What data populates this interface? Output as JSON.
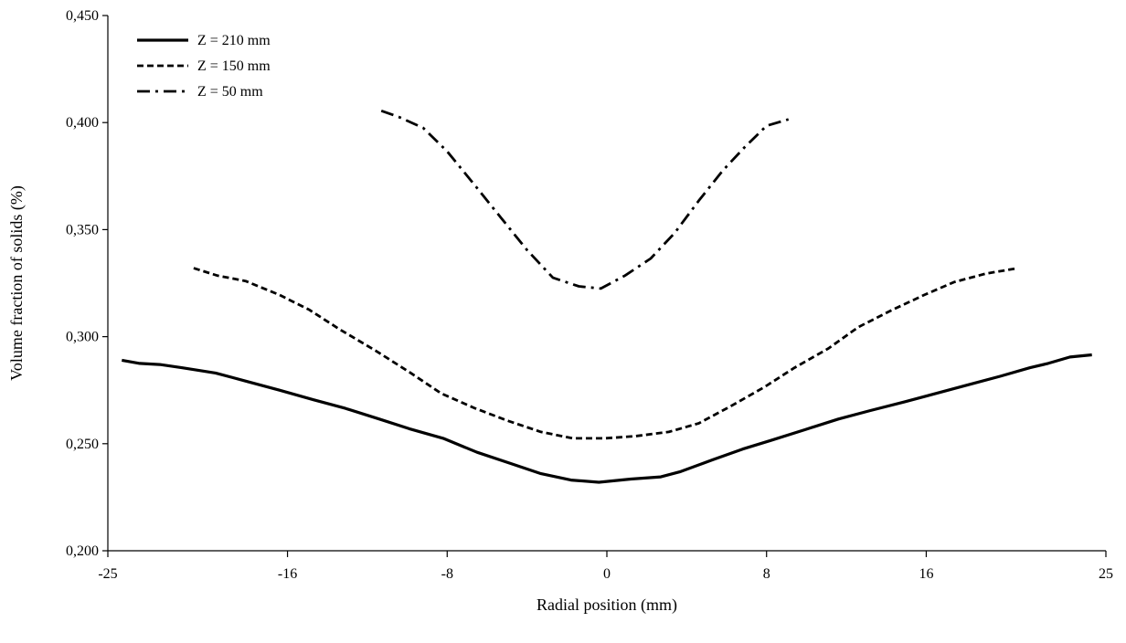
{
  "chart_data": {
    "type": "line",
    "title": "",
    "xlabel": "Radial position (mm)",
    "ylabel": "Volume fraction of solids (%)",
    "xlim": [
      -25,
      25
    ],
    "ylim": [
      0.2,
      0.45
    ],
    "x_ticks": [
      -25,
      -16,
      -8,
      0,
      8,
      16,
      25
    ],
    "x_tick_labels": [
      "-25",
      "-16",
      "-8",
      "0",
      "8",
      "16",
      "25"
    ],
    "y_ticks": [
      0.2,
      0.25,
      0.3,
      0.35,
      0.4,
      0.45
    ],
    "y_tick_labels": [
      "0,200",
      "0,250",
      "0,300",
      "0,350",
      "0,400",
      "0,450"
    ],
    "grid": false,
    "legend_position": "top-left",
    "series": [
      {
        "name": "Z = 210 mm",
        "style": "solid",
        "x": [
          -24.3,
          -23.4,
          -22.4,
          -21.3,
          -19.6,
          -18.0,
          -16.4,
          -14.7,
          -13.1,
          -11.4,
          -9.9,
          -8.2,
          -6.5,
          -4.9,
          -3.3,
          -1.8,
          -0.4,
          1.2,
          2.7,
          3.7,
          5.3,
          6.8,
          8.2,
          9.9,
          11.6,
          13.2,
          14.9,
          16.5,
          18.1,
          19.7,
          21.2,
          22.1,
          23.2,
          24.3
        ],
        "y": [
          0.289,
          0.2875,
          0.287,
          0.2855,
          0.283,
          0.279,
          0.275,
          0.2705,
          0.2665,
          0.2615,
          0.257,
          0.2525,
          0.246,
          0.241,
          0.236,
          0.233,
          0.232,
          0.2335,
          0.2345,
          0.237,
          0.2425,
          0.2475,
          0.2515,
          0.2565,
          0.2615,
          0.2655,
          0.2695,
          0.2735,
          0.2775,
          0.2815,
          0.2855,
          0.2875,
          0.2905,
          0.2915
        ]
      },
      {
        "name": "Z = 150 mm",
        "style": "dashed",
        "x": [
          -20.7,
          -19.5,
          -18.1,
          -16.4,
          -14.9,
          -13.4,
          -11.6,
          -9.9,
          -8.3,
          -6.6,
          -4.9,
          -3.3,
          -1.7,
          -0.1,
          1.4,
          3.1,
          4.6,
          6.2,
          7.9,
          9.4,
          11.1,
          12.6,
          14.3,
          15.9,
          17.4,
          19.0,
          20.6
        ],
        "y": [
          0.332,
          0.3285,
          0.326,
          0.3195,
          0.3125,
          0.3035,
          0.2935,
          0.2835,
          0.2735,
          0.2665,
          0.2605,
          0.2555,
          0.2525,
          0.2525,
          0.2535,
          0.2555,
          0.2595,
          0.2675,
          0.2765,
          0.2855,
          0.2945,
          0.3045,
          0.3125,
          0.3195,
          0.3255,
          0.3295,
          0.332
        ]
      },
      {
        "name": "Z = 50 mm",
        "style": "dash-dot",
        "x": [
          -11.3,
          -10.4,
          -9.2,
          -8.0,
          -6.6,
          -5.3,
          -4.0,
          -2.7,
          -1.4,
          -0.3,
          0.9,
          2.2,
          3.4,
          4.6,
          5.8,
          6.9,
          8.0,
          9.1
        ],
        "y": [
          0.4055,
          0.4025,
          0.3975,
          0.3865,
          0.3705,
          0.3555,
          0.3405,
          0.3275,
          0.3235,
          0.3225,
          0.3285,
          0.3365,
          0.3485,
          0.3635,
          0.3775,
          0.3885,
          0.3985,
          0.4015
        ]
      }
    ]
  }
}
